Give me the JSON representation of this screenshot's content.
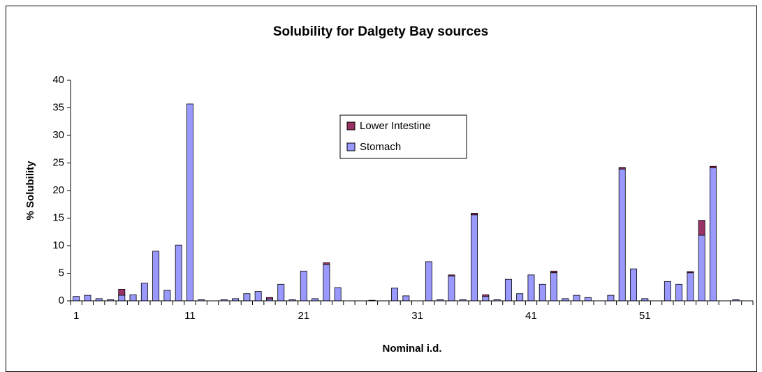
{
  "chart_data": {
    "type": "stacked_bar",
    "title": "Solubility for Dalgety Bay sources",
    "x_label": "Nominal i.d.",
    "y_label": "% Solubility",
    "categories": [
      "1",
      null,
      null,
      null,
      null,
      null,
      null,
      null,
      null,
      null,
      "11",
      null,
      null,
      null,
      null,
      null,
      null,
      null,
      null,
      null,
      "21",
      null,
      null,
      null,
      null,
      null,
      null,
      null,
      null,
      null,
      "31",
      null,
      null,
      null,
      null,
      null,
      null,
      null,
      null,
      null,
      "41",
      null,
      null,
      null,
      null,
      null,
      null,
      null,
      null,
      null,
      "51",
      null,
      null,
      null,
      null,
      null,
      null,
      null,
      null,
      null
    ],
    "series": [
      {
        "name": "Stomach",
        "color": "#9999ff",
        "values": [
          0.8,
          1.0,
          0.4,
          0.2,
          1.0,
          1.1,
          3.2,
          9.0,
          1.9,
          10.1,
          35.7,
          0.2,
          0,
          0.2,
          0.4,
          1.3,
          1.7,
          0.3,
          3.0,
          0.2,
          5.4,
          0.4,
          6.6,
          2.4,
          0,
          0,
          0.1,
          0,
          2.3,
          0.9,
          0,
          7.1,
          0.2,
          4.5,
          0.2,
          15.6,
          0.8,
          0.2,
          3.9,
          1.3,
          4.7,
          3.0,
          5.1,
          0.4,
          1.0,
          0.6,
          0,
          1.0,
          23.9,
          5.8,
          0.4,
          0,
          3.5,
          3.0,
          5.1,
          11.9,
          24.1,
          0,
          0.2,
          0
        ]
      },
      {
        "name": "Lower Intestine",
        "color": "#993366",
        "values": [
          0,
          0,
          0,
          0,
          1.1,
          0,
          0,
          0,
          0,
          0,
          0,
          0,
          0,
          0,
          0,
          0,
          0,
          0.3,
          0,
          0,
          0,
          0,
          0.3,
          0,
          0,
          0,
          0,
          0,
          0,
          0,
          0,
          0,
          0,
          0.2,
          0,
          0.3,
          0.3,
          0,
          0,
          0,
          0,
          0,
          0.3,
          0,
          0,
          0,
          0,
          0,
          0.3,
          0,
          0,
          0,
          0,
          0,
          0.2,
          2.7,
          0.3,
          0,
          0,
          0
        ]
      }
    ],
    "ylim": [
      0,
      40
    ],
    "yticks": [
      0,
      5,
      10,
      15,
      20,
      25,
      30,
      35,
      40
    ],
    "legend": "upper-center"
  }
}
